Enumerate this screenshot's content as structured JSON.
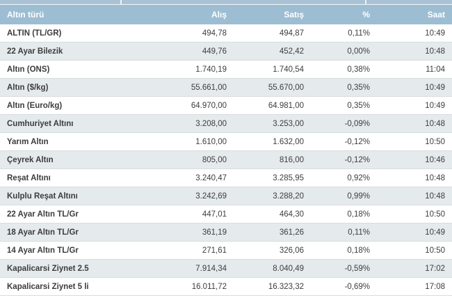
{
  "widget_title": "gold-prices-table",
  "colors": {
    "header_bg": "#9dbdd2",
    "tab_strip_bg": "#a9c2d5",
    "row_bg": "#ffffff",
    "row_alt_bg": "#e5eaed",
    "border": "#d7dcdf",
    "header_text": "#ffffff",
    "text": "#3d3d3d"
  },
  "table": {
    "headers": {
      "type": "Altın türü",
      "buy": "Alış",
      "sell": "Satış",
      "change": "%",
      "time": "Saat"
    },
    "rows": [
      {
        "type": "ALTIN (TL/GR)",
        "buy": "494,78",
        "sell": "494,87",
        "change": "0,11%",
        "time": "10:49"
      },
      {
        "type": "22 Ayar Bilezik",
        "buy": "449,76",
        "sell": "452,42",
        "change": "0,00%",
        "time": "10:48"
      },
      {
        "type": "Altın (ONS)",
        "buy": "1.740,19",
        "sell": "1.740,54",
        "change": "0,38%",
        "time": "11:04"
      },
      {
        "type": "Altın ($/kg)",
        "buy": "55.661,00",
        "sell": "55.670,00",
        "change": "0,35%",
        "time": "10:49"
      },
      {
        "type": "Altın (Euro/kg)",
        "buy": "64.970,00",
        "sell": "64.981,00",
        "change": "0,35%",
        "time": "10:49"
      },
      {
        "type": "Cumhuriyet Altını",
        "buy": "3.208,00",
        "sell": "3.253,00",
        "change": "-0,09%",
        "time": "10:48"
      },
      {
        "type": "Yarım Altın",
        "buy": "1.610,00",
        "sell": "1.632,00",
        "change": "-0,12%",
        "time": "10:50"
      },
      {
        "type": "Çeyrek Altın",
        "buy": "805,00",
        "sell": "816,00",
        "change": "-0,12%",
        "time": "10:46"
      },
      {
        "type": "Reşat Altını",
        "buy": "3.240,47",
        "sell": "3.285,95",
        "change": "0,92%",
        "time": "10:48"
      },
      {
        "type": "Kulplu Reşat Altını",
        "buy": "3.242,69",
        "sell": "3.288,20",
        "change": "0,99%",
        "time": "10:48"
      },
      {
        "type": "22 Ayar Altın TL/Gr",
        "buy": "447,01",
        "sell": "464,30",
        "change": "0,18%",
        "time": "10:50"
      },
      {
        "type": "18 Ayar Altın TL/Gr",
        "buy": "361,19",
        "sell": "361,26",
        "change": "0,11%",
        "time": "10:49"
      },
      {
        "type": "14 Ayar Altın TL/Gr",
        "buy": "271,61",
        "sell": "326,06",
        "change": "0,18%",
        "time": "10:50"
      },
      {
        "type": "Kapalicarsi Ziynet 2.5",
        "buy": "7.914,34",
        "sell": "8.040,49",
        "change": "-0,59%",
        "time": "17:02"
      },
      {
        "type": "Kapalicarsi Ziynet 5 li",
        "buy": "16.011,72",
        "sell": "16.323,32",
        "change": "-0,69%",
        "time": "17:08"
      }
    ]
  }
}
